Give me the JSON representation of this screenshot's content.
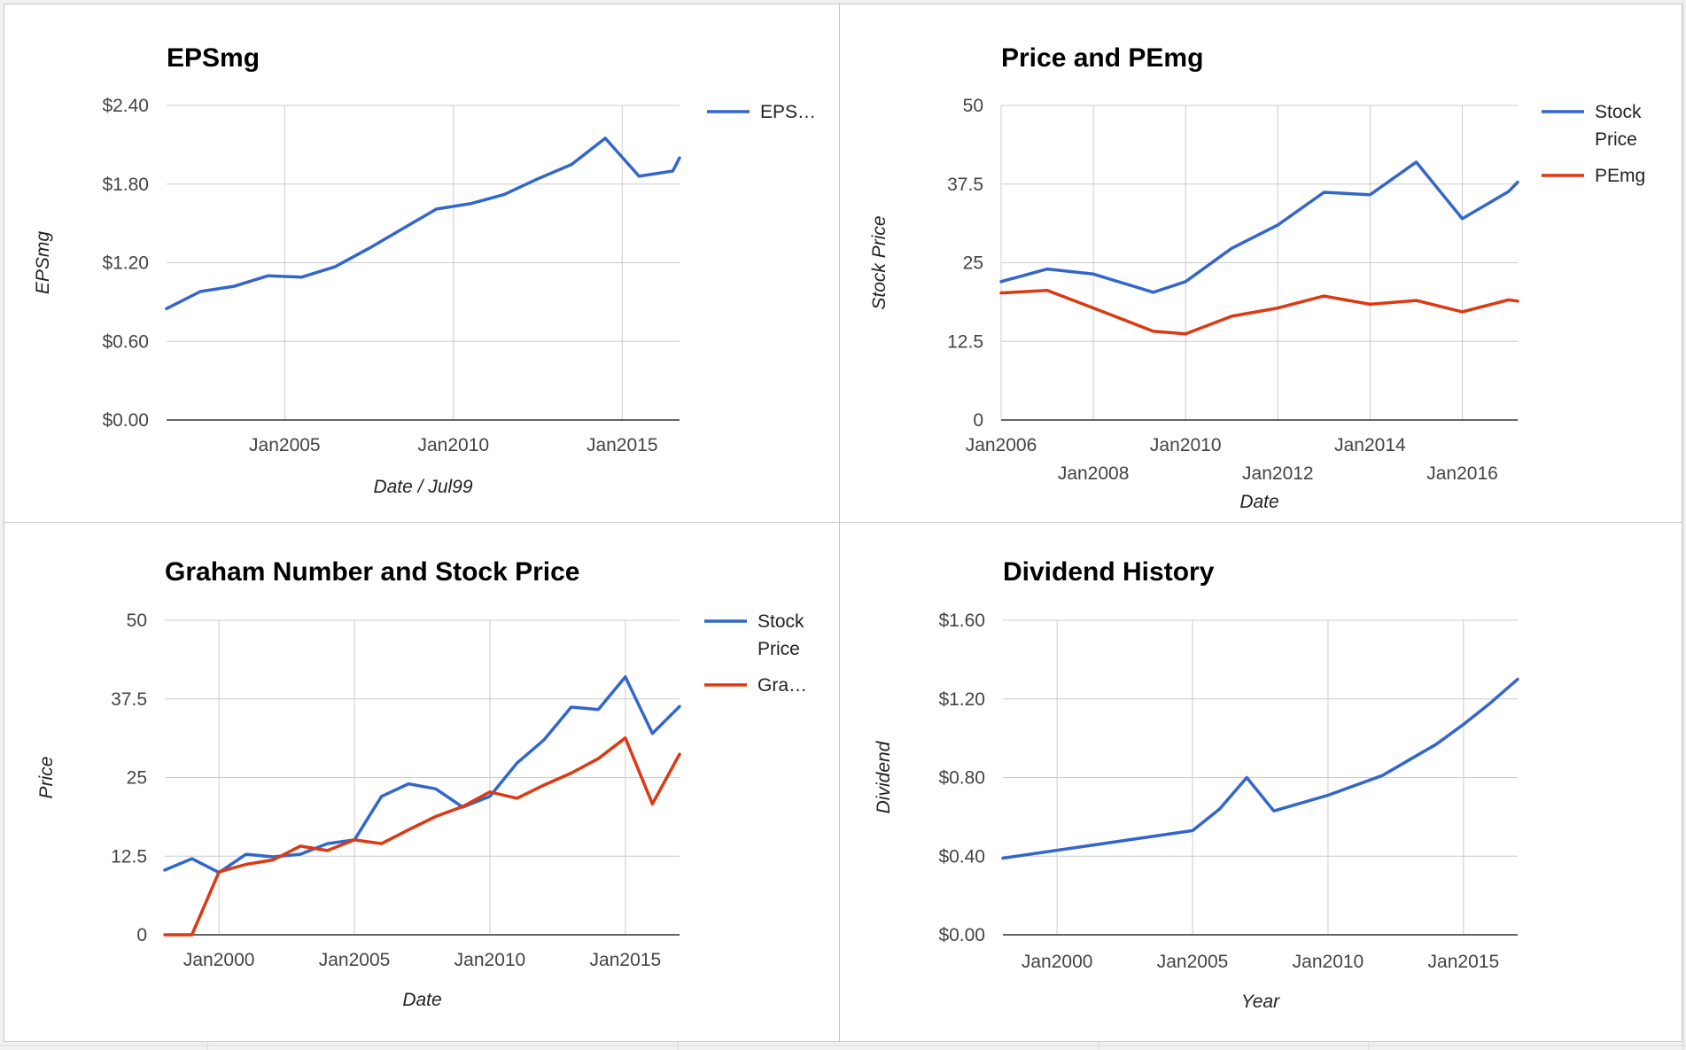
{
  "colors": {
    "blue": "#3366cc",
    "red": "#dc3912",
    "grid": "#cccccc",
    "baseline": "#333333"
  },
  "chart_data": [
    {
      "type": "line",
      "title": "EPSmg",
      "xlabel": "Date / Jul99",
      "ylabel": "EPSmg",
      "xlim": [
        2001.5,
        2016.7
      ],
      "ylim": [
        0,
        2.4
      ],
      "xticks": [
        {
          "v": 2005,
          "label": "Jan2005"
        },
        {
          "v": 2010,
          "label": "Jan2010"
        },
        {
          "v": 2015,
          "label": "Jan2015"
        }
      ],
      "yticks": [
        {
          "v": 0,
          "label": "$0.00"
        },
        {
          "v": 0.6,
          "label": "$0.60"
        },
        {
          "v": 1.2,
          "label": "$1.20"
        },
        {
          "v": 1.8,
          "label": "$1.80"
        },
        {
          "v": 2.4,
          "label": "$2.40"
        }
      ],
      "legend_position": "right",
      "series": [
        {
          "name": "EPS…",
          "color": "blue",
          "x": [
            2001.5,
            2002.5,
            2003.5,
            2004.5,
            2005.5,
            2006.5,
            2007.5,
            2008.5,
            2009.5,
            2010.5,
            2011.5,
            2012.5,
            2013.5,
            2014.5,
            2015.5,
            2016.5,
            2016.7
          ],
          "y": [
            0.85,
            0.98,
            1.02,
            1.1,
            1.09,
            1.17,
            1.31,
            1.46,
            1.61,
            1.65,
            1.72,
            1.84,
            1.95,
            2.15,
            1.86,
            1.9,
            2.0
          ]
        }
      ]
    },
    {
      "type": "line",
      "title": "Price and PEmg",
      "xlabel": "Date",
      "ylabel": "Stock Price",
      "xlim": [
        2006,
        2017.2
      ],
      "ylim": [
        0,
        50
      ],
      "xticks": [
        {
          "v": 2006,
          "label": "Jan2006",
          "row": 0
        },
        {
          "v": 2008,
          "label": "Jan2008",
          "row": 1
        },
        {
          "v": 2010,
          "label": "Jan2010",
          "row": 0
        },
        {
          "v": 2012,
          "label": "Jan2012",
          "row": 1
        },
        {
          "v": 2014,
          "label": "Jan2014",
          "row": 0
        },
        {
          "v": 2016,
          "label": "Jan2016",
          "row": 1
        }
      ],
      "yticks": [
        {
          "v": 0,
          "label": "0"
        },
        {
          "v": 12.5,
          "label": "12.5"
        },
        {
          "v": 25,
          "label": "25"
        },
        {
          "v": 37.5,
          "label": "37.5"
        },
        {
          "v": 50,
          "label": "50"
        }
      ],
      "legend_position": "right",
      "series": [
        {
          "name": "Stock Price",
          "color": "blue",
          "x": [
            2006,
            2007,
            2008,
            2009.3,
            2010,
            2011,
            2012,
            2013,
            2014,
            2015,
            2016,
            2017,
            2017.2
          ],
          "y": [
            22.0,
            24.0,
            23.2,
            20.3,
            22.0,
            27.3,
            31.0,
            36.2,
            35.8,
            41.0,
            32.0,
            36.3,
            37.8
          ]
        },
        {
          "name": "PEmg",
          "color": "red",
          "x": [
            2006,
            2007,
            2008,
            2009.3,
            2010,
            2011,
            2012,
            2013,
            2014,
            2015,
            2016,
            2017,
            2017.2
          ],
          "y": [
            20.2,
            20.6,
            17.8,
            14.1,
            13.7,
            16.5,
            17.8,
            19.7,
            18.4,
            19.0,
            17.2,
            19.1,
            18.9
          ]
        }
      ]
    },
    {
      "type": "line",
      "title": "Graham Number and Stock Price",
      "xlabel": "Date",
      "ylabel": "Price",
      "xlim": [
        1998,
        2017
      ],
      "ylim": [
        0,
        50
      ],
      "xticks": [
        {
          "v": 2000,
          "label": "Jan2000"
        },
        {
          "v": 2005,
          "label": "Jan2005"
        },
        {
          "v": 2010,
          "label": "Jan2010"
        },
        {
          "v": 2015,
          "label": "Jan2015"
        }
      ],
      "yticks": [
        {
          "v": 0,
          "label": "0"
        },
        {
          "v": 12.5,
          "label": "12.5"
        },
        {
          "v": 25,
          "label": "25"
        },
        {
          "v": 37.5,
          "label": "37.5"
        },
        {
          "v": 50,
          "label": "50"
        }
      ],
      "legend_position": "right",
      "series": [
        {
          "name": "Stock Price",
          "color": "blue",
          "x": [
            1998,
            1999,
            2000,
            2001,
            2002,
            2003,
            2004,
            2005,
            2006,
            2007,
            2008,
            2009,
            2010,
            2011,
            2012,
            2013,
            2014,
            2015,
            2016,
            2017
          ],
          "y": [
            10.3,
            12.1,
            9.9,
            12.8,
            12.4,
            12.8,
            14.5,
            15.1,
            22.0,
            24.0,
            23.2,
            20.3,
            22.0,
            27.3,
            31.0,
            36.2,
            35.8,
            41.0,
            32.0,
            36.3
          ]
        },
        {
          "name": "Gra…",
          "color": "red",
          "x": [
            1998,
            1999,
            2000,
            2001,
            2002,
            2003,
            2004,
            2005,
            2006,
            2007,
            2008,
            2009,
            2010,
            2011,
            2012,
            2013,
            2014,
            2015,
            2016,
            2017
          ],
          "y": [
            0,
            0,
            10.0,
            11.2,
            11.9,
            14.1,
            13.4,
            15.1,
            14.5,
            16.7,
            18.8,
            20.4,
            22.7,
            21.7,
            23.8,
            25.7,
            28.0,
            31.3,
            20.8,
            28.7
          ]
        }
      ]
    },
    {
      "type": "line",
      "title": "Dividend History",
      "xlabel": "Year",
      "ylabel": "Dividend",
      "xlim": [
        1998,
        2017
      ],
      "ylim": [
        0,
        1.6
      ],
      "xticks": [
        {
          "v": 2000,
          "label": "Jan2000"
        },
        {
          "v": 2005,
          "label": "Jan2005"
        },
        {
          "v": 2010,
          "label": "Jan2010"
        },
        {
          "v": 2015,
          "label": "Jan2015"
        }
      ],
      "yticks": [
        {
          "v": 0,
          "label": "$0.00"
        },
        {
          "v": 0.4,
          "label": "$0.40"
        },
        {
          "v": 0.8,
          "label": "$0.80"
        },
        {
          "v": 1.2,
          "label": "$1.20"
        },
        {
          "v": 1.6,
          "label": "$1.60"
        }
      ],
      "legend_position": "none",
      "series": [
        {
          "name": "",
          "color": "blue",
          "x": [
            1998,
            2005,
            2006,
            2007,
            2008,
            2010,
            2012,
            2014,
            2015,
            2016,
            2017
          ],
          "y": [
            0.39,
            0.53,
            0.64,
            0.8,
            0.63,
            0.71,
            0.81,
            0.97,
            1.07,
            1.18,
            1.3
          ]
        }
      ]
    }
  ]
}
